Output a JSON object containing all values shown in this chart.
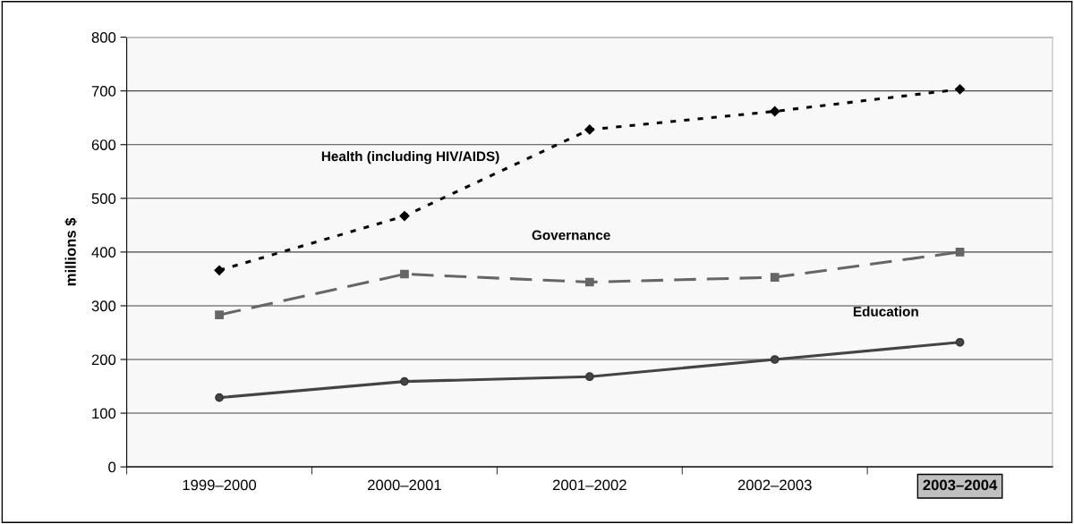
{
  "chart_data": {
    "type": "line",
    "ylabel": "millions $",
    "categories": [
      "1999–2000",
      "2000–2001",
      "2001–2002",
      "2002–2003",
      "2003–2004"
    ],
    "series": [
      {
        "name": "Health (including HIV/AIDS)",
        "color": "#000000",
        "marker": "diamond",
        "line_style": "dotted",
        "values": [
          366,
          467,
          628,
          662,
          703
        ]
      },
      {
        "name": "Governance",
        "color": "#666666",
        "marker": "square",
        "line_style": "dashed",
        "values": [
          283,
          359,
          344,
          353,
          400
        ]
      },
      {
        "name": "Education",
        "color": "#444444",
        "marker": "circle",
        "line_style": "solid",
        "values": [
          129,
          159,
          168,
          200,
          232
        ]
      }
    ],
    "ylim": [
      0,
      800
    ],
    "yticks": [
      0,
      100,
      200,
      300,
      400,
      500,
      600,
      700,
      800
    ],
    "grid": "y",
    "legend": false
  }
}
